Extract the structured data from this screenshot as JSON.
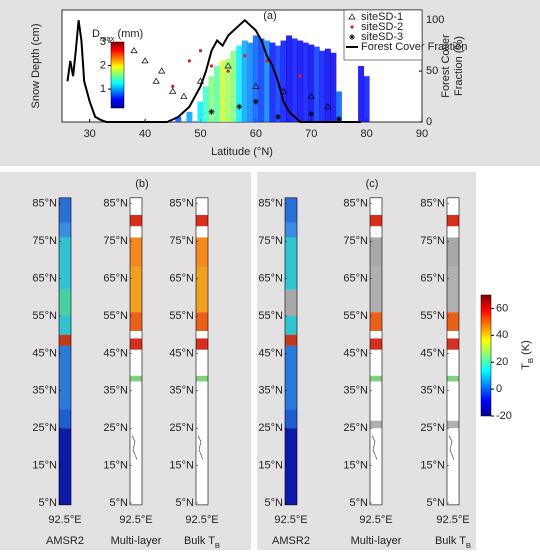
{
  "chart_data": [
    {
      "type": "scatter",
      "title": "(a)",
      "xlabel": "Latitude (°N)",
      "ylabel": "Snow Depth (cm)",
      "y2label": [
        "Forest Cover",
        "Fraction (%)"
      ],
      "xlim": [
        25,
        90
      ],
      "xticks": [
        30,
        40,
        50,
        60,
        70,
        80,
        90
      ],
      "ylim": [
        0,
        110
      ],
      "y2lim": [
        0,
        110
      ],
      "y2ticks": [
        0,
        50,
        100
      ],
      "colorbar": {
        "label": [
          "D",
          "max",
          " (mm)"
        ],
        "clim": [
          0.2,
          3
        ],
        "ticks": [
          1,
          2,
          3
        ]
      },
      "series": [
        {
          "marker": "square",
          "x": [
            46,
            48,
            50,
            51,
            52,
            53,
            54,
            55,
            56,
            57,
            58,
            59,
            60,
            61,
            62,
            63,
            64,
            65,
            66,
            67,
            68,
            69,
            70,
            71,
            72,
            73,
            74,
            75,
            79,
            80
          ],
          "values": [
            5,
            10,
            20,
            35,
            45,
            55,
            60,
            62,
            70,
            75,
            80,
            78,
            85,
            82,
            80,
            78,
            75,
            80,
            85,
            82,
            80,
            78,
            76,
            74,
            70,
            72,
            68,
            30,
            55,
            45
          ],
          "dmax": [
            0.8,
            1.0,
            1.2,
            1.4,
            1.6,
            1.5,
            1.8,
            1.7,
            1.6,
            1.2,
            1.0,
            0.9,
            0.8,
            0.7,
            0.9,
            0.6,
            0.7,
            0.6,
            0.5,
            0.6,
            0.5,
            0.6,
            0.5,
            0.7,
            0.6,
            0.5,
            0.5,
            0.8,
            0.5,
            0.6
          ]
        },
        {
          "name": "siteSD-1",
          "marker": "triangle",
          "color": "#000000",
          "x": [
            38,
            40,
            42,
            43,
            45,
            47,
            50,
            55,
            60,
            65,
            70,
            73
          ],
          "values": [
            70,
            60,
            40,
            50,
            30,
            25,
            40,
            55,
            35,
            30,
            25,
            15
          ]
        },
        {
          "name": "siteSD-2",
          "marker": "dot",
          "color": "#d62020",
          "x": [
            45,
            48,
            50,
            52,
            55,
            58,
            62,
            68
          ],
          "values": [
            35,
            60,
            70,
            55,
            50,
            65,
            60,
            45
          ]
        },
        {
          "name": "siteSD-3",
          "marker": "asterisk",
          "color": "#000000",
          "x": [
            52,
            57,
            60,
            64,
            70,
            75
          ],
          "values": [
            10,
            15,
            20,
            5,
            8,
            3
          ]
        },
        {
          "name": "Forest Cover Fraction",
          "marker": "line",
          "axis": "y2",
          "color": "#000000",
          "x": [
            26,
            26.5,
            27,
            27.5,
            28,
            28.5,
            29,
            30,
            31,
            32,
            33,
            35,
            40,
            44,
            46,
            48,
            50,
            51,
            52,
            53,
            54,
            55,
            56,
            57,
            58,
            59,
            60,
            61,
            62,
            63,
            64,
            65,
            66,
            67,
            68,
            75,
            79
          ],
          "values": [
            40,
            60,
            45,
            70,
            100,
            80,
            40,
            20,
            5,
            2,
            0,
            0,
            0,
            0,
            5,
            15,
            35,
            50,
            70,
            80,
            75,
            85,
            90,
            95,
            100,
            95,
            90,
            80,
            65,
            55,
            40,
            20,
            10,
            5,
            0,
            0,
            0
          ]
        }
      ]
    }
  ],
  "maps": {
    "lat_ticks": [
      {
        "value": 85,
        "label": "85°N"
      },
      {
        "value": 75,
        "label": "75°N"
      },
      {
        "value": 65,
        "label": "65°N"
      },
      {
        "value": 55,
        "label": "55°N"
      },
      {
        "value": 45,
        "label": "45°N"
      },
      {
        "value": 35,
        "label": "35°N"
      },
      {
        "value": 25,
        "label": "25°N"
      },
      {
        "value": 15,
        "label": "15°N"
      },
      {
        "value": 5,
        "label": "5°N"
      }
    ],
    "lon_label": "92.5°E",
    "panels": [
      {
        "label": "(b)",
        "columns": [
          [
            "AMSR2"
          ],
          [
            "Multi-layer"
          ],
          [
            "Bulk T",
            "B"
          ]
        ]
      },
      {
        "label": "(c)",
        "columns": [
          [
            "AMSR2"
          ],
          [
            "Multi-layer"
          ],
          [
            "Bulk T",
            "B"
          ]
        ]
      }
    ],
    "colorbar": {
      "label": [
        "T",
        "B",
        " (K)"
      ],
      "clim": [
        -20,
        70
      ],
      "ticks": [
        -20,
        0,
        20,
        40,
        60
      ]
    }
  }
}
